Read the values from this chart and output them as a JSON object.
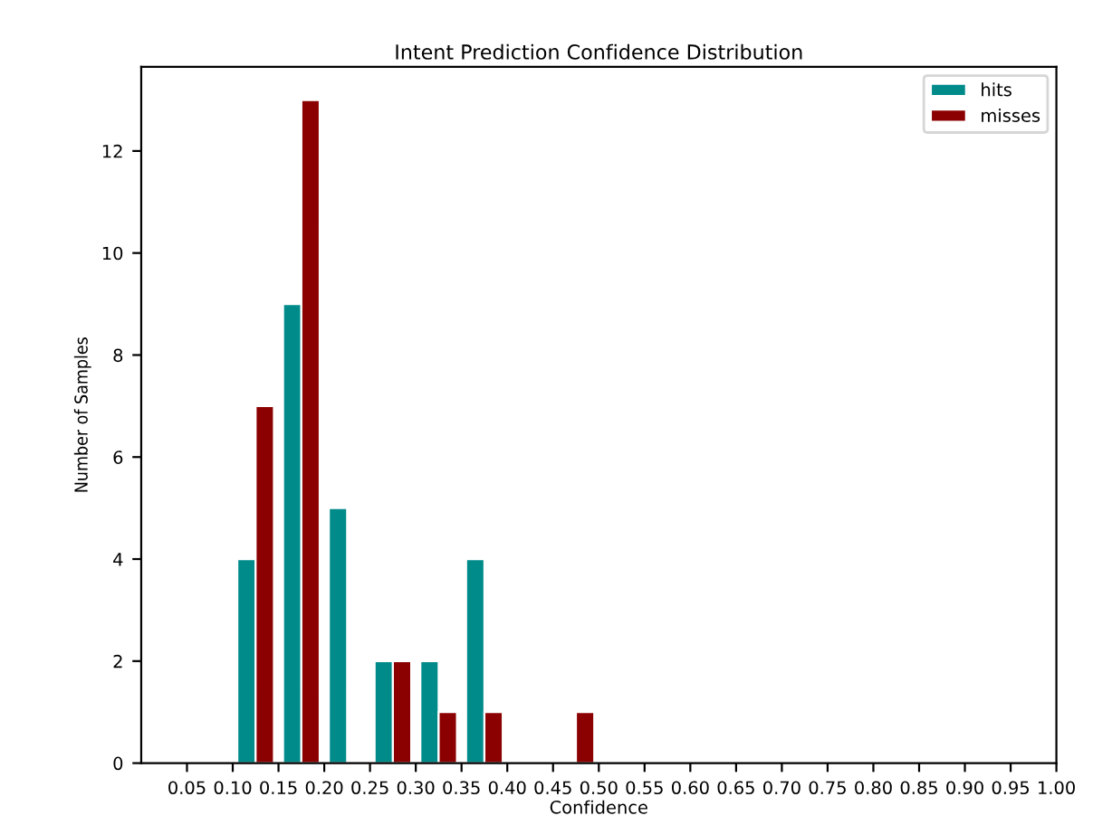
{
  "chart_data": {
    "type": "histogram",
    "title": "Intent Prediction Confidence Distribution",
    "xlabel": "Confidence",
    "ylabel": "Number of Samples",
    "bins": [
      0.1,
      0.15,
      0.2,
      0.25,
      0.3,
      0.35,
      0.4,
      0.45,
      0.5
    ],
    "series": [
      {
        "name": "hits",
        "color": "#008b8b",
        "values": [
          4,
          9,
          5,
          2,
          2,
          4,
          0,
          0
        ]
      },
      {
        "name": "misses",
        "color": "#8b0000",
        "values": [
          7,
          13,
          0,
          2,
          1,
          1,
          0,
          1
        ]
      }
    ],
    "xlim": [
      0,
      1.0
    ],
    "xticks": [
      0.05,
      {
        "value": 0.1,
        "label": "0.10"
      },
      0.15,
      {
        "value": 0.2,
        "label": "0.20"
      },
      0.25,
      {
        "value": 0.3,
        "label": "0.30"
      },
      0.35,
      {
        "value": 0.4,
        "label": "0.40"
      },
      0.45,
      {
        "value": 0.5,
        "label": "0.50"
      },
      0.55,
      {
        "value": 0.6,
        "label": "0.60"
      },
      0.65,
      {
        "value": 0.7,
        "label": "0.70"
      },
      0.75,
      {
        "value": 0.8,
        "label": "0.80"
      },
      0.85,
      {
        "value": 0.9,
        "label": "0.90"
      },
      0.95,
      {
        "value": 1.0,
        "label": "1.00"
      }
    ],
    "ylim": [
      0,
      13.65
    ],
    "yticks": [
      0,
      2,
      4,
      6,
      8,
      10,
      12
    ],
    "legend": "top right",
    "grid": false
  }
}
